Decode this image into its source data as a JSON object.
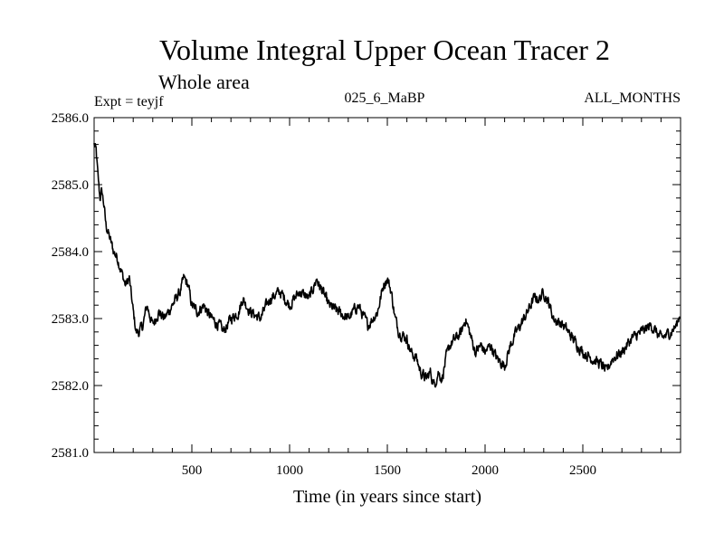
{
  "chart_data": {
    "type": "line",
    "title": "Volume Integral Upper Ocean Tracer 2",
    "subtitle": "Whole area",
    "expt_label": "Expt = teyjf",
    "period_label": "025_6_MaBP",
    "months_label": "ALL_MONTHS",
    "xlabel": "Time (in years since start)",
    "ylabel": "",
    "xlim": [
      0,
      3000
    ],
    "ylim": [
      2581.0,
      2586.0
    ],
    "x_ticks": [
      500,
      1000,
      1500,
      2000,
      2500
    ],
    "x_tick_labels": [
      "500",
      "1000",
      "1500",
      "2000",
      "2500"
    ],
    "y_ticks": [
      2581.0,
      2582.0,
      2583.0,
      2584.0,
      2585.0,
      2586.0
    ],
    "y_tick_labels": [
      "2581.0",
      "2582.0",
      "2583.0",
      "2584.0",
      "2585.0",
      "2586.0"
    ],
    "grid": false,
    "line_color": "#000000",
    "series": [
      {
        "name": "teyjf",
        "x": [
          0,
          10,
          20,
          30,
          40,
          50,
          60,
          70,
          80,
          100,
          120,
          140,
          160,
          180,
          200,
          215,
          230,
          250,
          270,
          300,
          330,
          360,
          400,
          440,
          460,
          480,
          500,
          530,
          560,
          600,
          640,
          660,
          700,
          740,
          760,
          800,
          850,
          900,
          950,
          1000,
          1050,
          1100,
          1140,
          1150,
          1170,
          1200,
          1250,
          1300,
          1350,
          1400,
          1450,
          1480,
          1500,
          1520,
          1540,
          1560,
          1600,
          1620,
          1650,
          1670,
          1700,
          1720,
          1740,
          1760,
          1780,
          1800,
          1820,
          1850,
          1880,
          1900,
          1930,
          1950,
          1980,
          2000,
          2030,
          2060,
          2100,
          2130,
          2160,
          2200,
          2250,
          2280,
          2300,
          2330,
          2350,
          2400,
          2450,
          2500,
          2550,
          2600,
          2620,
          2650,
          2700,
          2750,
          2800,
          2850,
          2900,
          2950,
          2980,
          3000
        ],
        "values": [
          2585.6,
          2585.5,
          2585.1,
          2584.8,
          2584.9,
          2584.7,
          2584.4,
          2584.3,
          2584.2,
          2584.0,
          2583.9,
          2583.7,
          2583.5,
          2583.6,
          2583.1,
          2582.8,
          2582.8,
          2582.9,
          2583.2,
          2582.9,
          2583.1,
          2583.0,
          2583.2,
          2583.4,
          2583.6,
          2583.5,
          2583.2,
          2583.1,
          2583.2,
          2583.0,
          2582.9,
          2582.8,
          2583.0,
          2583.1,
          2583.3,
          2583.1,
          2583.0,
          2583.3,
          2583.4,
          2583.2,
          2583.4,
          2583.3,
          2583.6,
          2583.5,
          2583.4,
          2583.2,
          2583.1,
          2583.0,
          2583.2,
          2582.9,
          2583.1,
          2583.5,
          2583.6,
          2583.4,
          2583.0,
          2582.8,
          2582.7,
          2582.5,
          2582.4,
          2582.2,
          2582.1,
          2582.2,
          2582.0,
          2582.2,
          2582.1,
          2582.4,
          2582.6,
          2582.7,
          2582.8,
          2583.0,
          2582.7,
          2582.5,
          2582.6,
          2582.5,
          2582.6,
          2582.4,
          2582.3,
          2582.6,
          2582.8,
          2583.0,
          2583.3,
          2583.3,
          2583.4,
          2583.2,
          2583.0,
          2582.9,
          2582.7,
          2582.5,
          2582.4,
          2582.3,
          2582.2,
          2582.4,
          2582.5,
          2582.7,
          2582.8,
          2582.9,
          2582.7,
          2582.8,
          2582.9,
          2583.1
        ]
      }
    ]
  }
}
